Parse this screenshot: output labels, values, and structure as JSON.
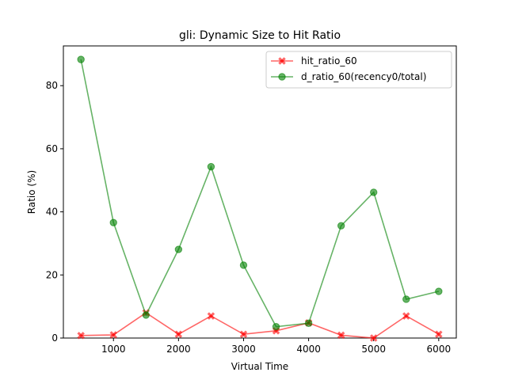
{
  "chart_data": {
    "type": "line",
    "title": "gli: Dynamic Size to Hit Ratio",
    "xlabel": "Virtual Time",
    "ylabel": "Ratio (%)",
    "xlim": [
      230,
      6270
    ],
    "ylim": [
      0,
      92.6
    ],
    "xticks": [
      1000,
      2000,
      3000,
      4000,
      5000,
      6000
    ],
    "yticks": [
      0,
      20,
      40,
      60,
      80
    ],
    "grid": false,
    "legend_position": "top-right",
    "x": [
      500,
      1000,
      1500,
      2000,
      2500,
      3000,
      3500,
      4000,
      4500,
      5000,
      5500,
      6000
    ],
    "series": [
      {
        "name": "hit_ratio_60",
        "color": "#ff0000",
        "marker": "x",
        "values": [
          0.8,
          1.0,
          8.0,
          1.2,
          7.0,
          1.2,
          2.3,
          4.8,
          0.9,
          0.0,
          7.0,
          1.2
        ]
      },
      {
        "name": "d_ratio_60(recency0/total)",
        "color": "#008000",
        "marker": "o",
        "values": [
          88.3,
          36.6,
          7.3,
          28.1,
          54.3,
          23.1,
          3.6,
          4.7,
          35.6,
          46.2,
          12.3,
          14.8
        ]
      }
    ]
  }
}
